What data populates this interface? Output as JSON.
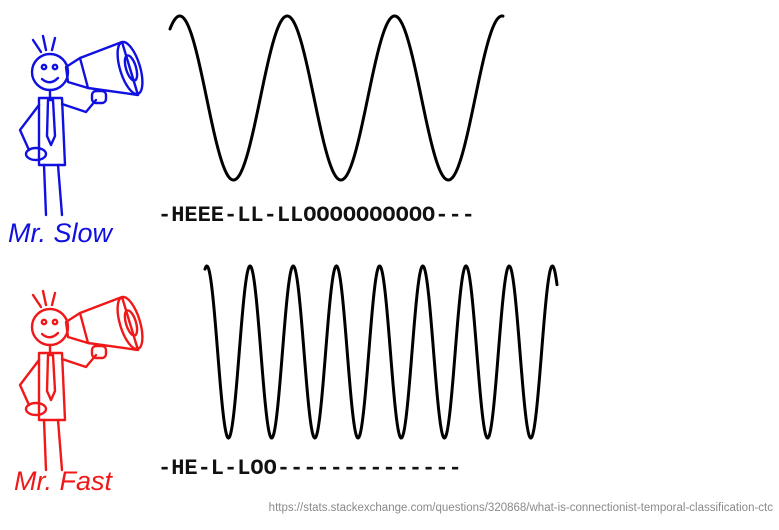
{
  "speakers": [
    {
      "id": "slow",
      "label": "Mr. Slow",
      "color": "#1010e0",
      "transcription": "-HEEE-LL-LLOOOOOOOOOO---",
      "waveform_cycles": 3
    },
    {
      "id": "fast",
      "label": "Mr. Fast",
      "color": "#f01818",
      "transcription": "-HE-L-LOO--------------",
      "waveform_cycles": 8
    }
  ],
  "waveform_color": "#000000",
  "source_url": "https://stats.stackexchange.com/questions/320868/what-is-connectionist-temporal-classification-ctc"
}
